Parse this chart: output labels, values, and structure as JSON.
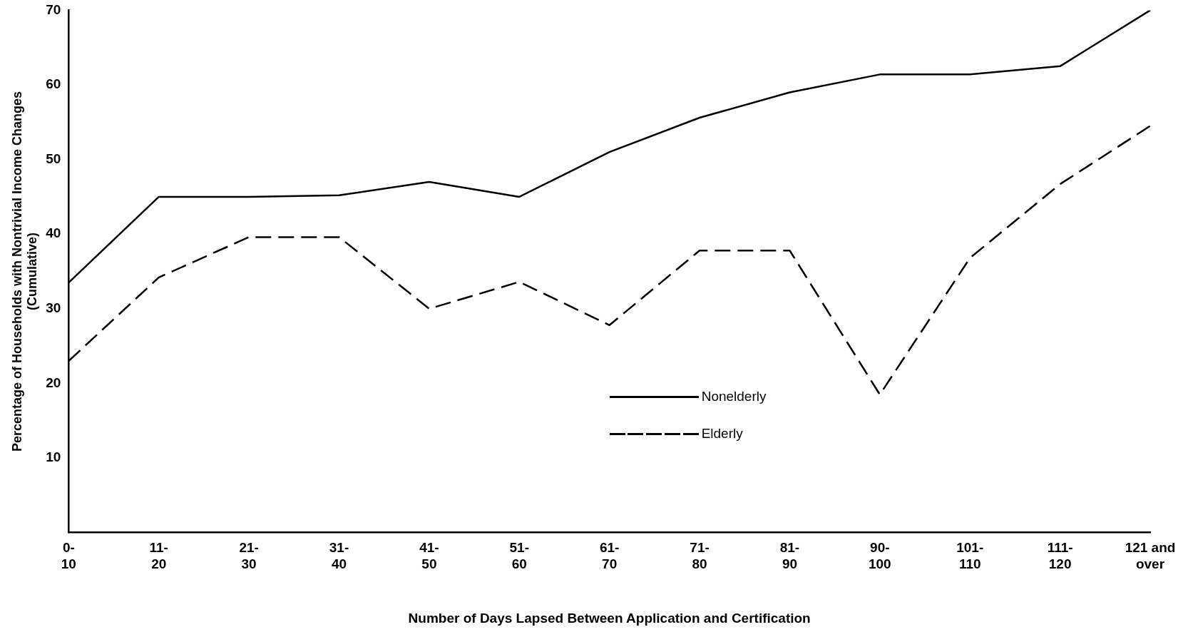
{
  "chart_data": {
    "type": "line",
    "xlabel": "Number of Days Lapsed Between Application and Certification",
    "ylabel": "Percentage of Households with Nontrivial Income Changes\n(Cumulative)",
    "categories": [
      "0-\n10",
      "11-\n20",
      "21-\n30",
      "31-\n40",
      "41-\n50",
      "51-\n60",
      "61-\n70",
      "71-\n80",
      "81-\n90",
      "90-\n100",
      "101-\n110",
      "111-\n120",
      "121 and\nover"
    ],
    "series": [
      {
        "name": "Nonelderly",
        "color": "#000000",
        "line_style": "solid",
        "values": [
          33.5,
          45,
          45,
          45.2,
          47,
          45,
          51,
          55.6,
          59,
          61.4,
          61.4,
          62.5,
          70
        ]
      },
      {
        "name": "Elderly",
        "color": "#000000",
        "line_style": "dashed",
        "values": [
          23,
          34.2,
          39.6,
          39.6,
          30,
          33.6,
          27.8,
          37.8,
          37.8,
          18.5,
          36.8,
          46.7,
          54.5
        ]
      }
    ],
    "ylim": [
      0,
      70
    ],
    "yticks": [
      10,
      20,
      30,
      40,
      50,
      60,
      70
    ],
    "grid": false,
    "legend": "bottom",
    "marker": "none"
  }
}
